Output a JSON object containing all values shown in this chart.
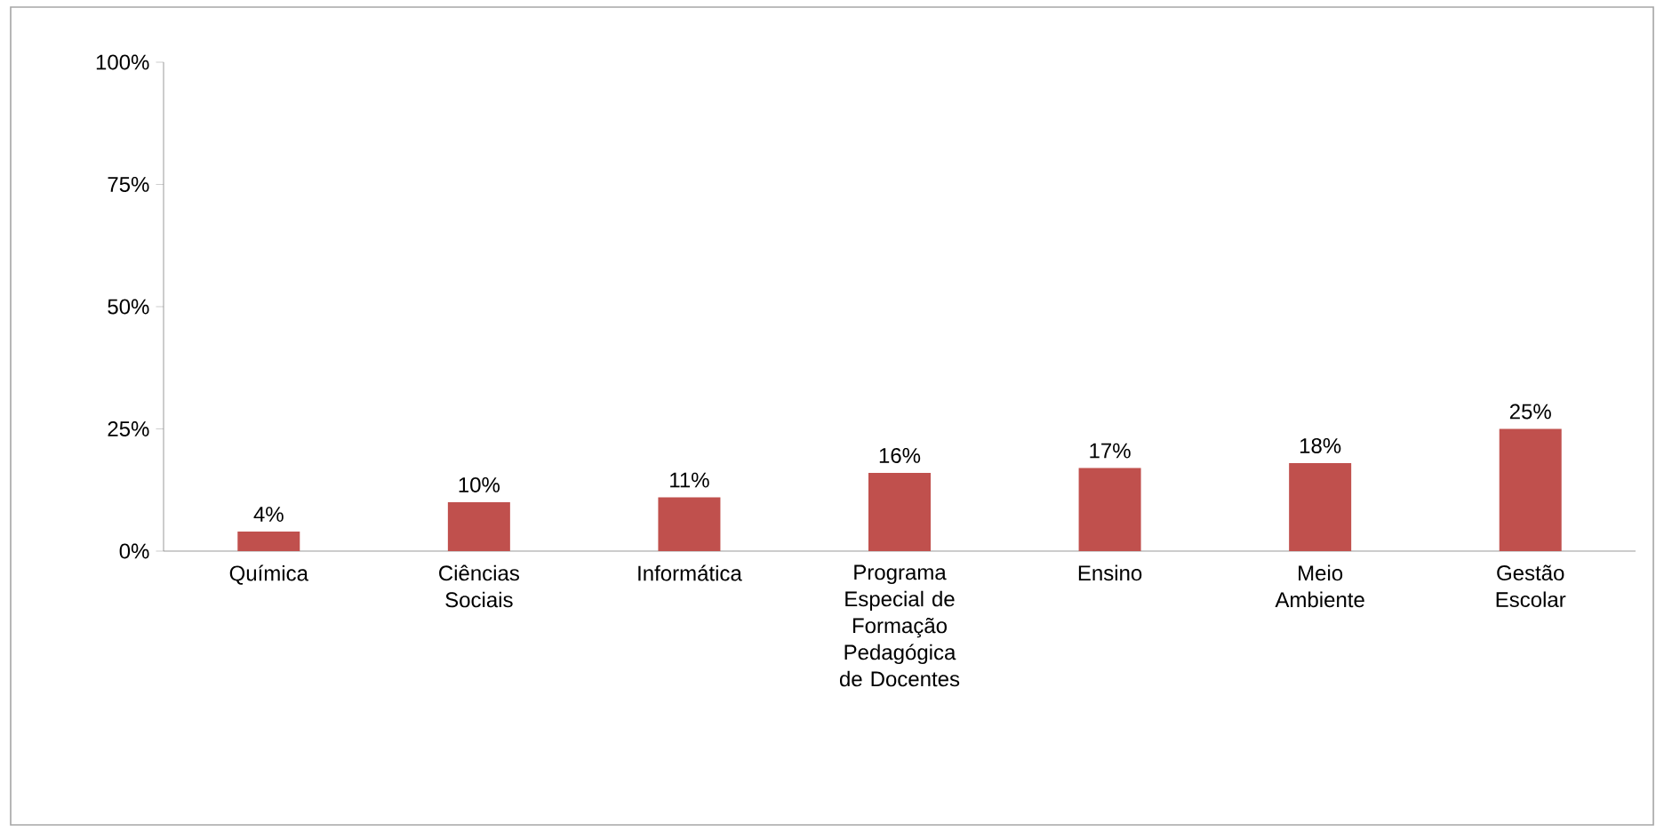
{
  "chart_data": {
    "type": "bar",
    "categories": [
      "Química",
      "Ciências Sociais",
      "Informática",
      "Programa Especial de Formação Pedagógica de Docentes",
      "Ensino",
      "Meio Ambiente",
      "Gestão Escolar"
    ],
    "values": [
      4,
      10,
      11,
      16,
      17,
      18,
      25
    ],
    "value_labels": [
      "4%",
      "10%",
      "11%",
      "16%",
      "17%",
      "18%",
      "25%"
    ],
    "color": "#c0504d",
    "ylim": [
      0,
      100
    ],
    "yticks": [
      {
        "value": 0,
        "label": "0%"
      },
      {
        "value": 25,
        "label": "25%"
      },
      {
        "value": 50,
        "label": "50%"
      },
      {
        "value": 75,
        "label": "75%"
      },
      {
        "value": 100,
        "label": "100%"
      }
    ],
    "grid": false
  }
}
